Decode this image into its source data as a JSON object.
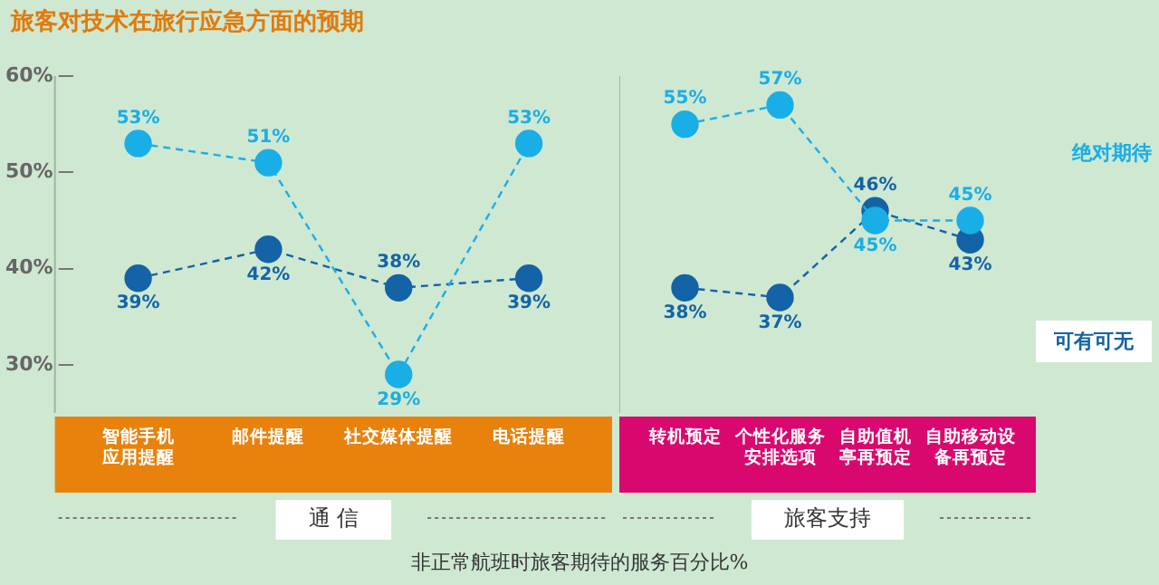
{
  "chart_data": [
    {
      "type": "line",
      "title": "旅客对技术在旅行应急方面的预期",
      "xlabel": "通 信",
      "annotations": [
        "非正常航班时旅客期待的服务百分比%"
      ],
      "categories": [
        "智能手机应用提醒",
        "邮件提醒",
        "社交媒体提醒",
        "电话提醒"
      ],
      "series": [
        {
          "color": "#1aaee6",
          "values": [
            53,
            51,
            29,
            53
          ],
          "value_labels": [
            "53%",
            "51%",
            "29%",
            "53%"
          ]
        },
        {
          "color": "#1463a6",
          "values": [
            39,
            42,
            38,
            39
          ],
          "value_labels": [
            "39%",
            "42%",
            "38%",
            "39%"
          ]
        }
      ],
      "ylim": [
        25,
        60
      ],
      "yticks": [
        {
          "value": 30,
          "label": "30%"
        },
        {
          "value": 40,
          "label": "40%"
        },
        {
          "value": 50,
          "label": "50%"
        },
        {
          "value": 60,
          "label": "60%"
        }
      ],
      "grid": false,
      "marker": "circle",
      "line_style": "dashed"
    },
    {
      "type": "line",
      "xlabel": "旅客支持",
      "categories": [
        "转机预定",
        "个性化服务安排选项",
        "自助值机亭再预定",
        "自助移动设备再预定"
      ],
      "series": [
        {
          "name": "绝对期待",
          "color": "#1aaee6",
          "values": [
            55,
            57,
            45,
            45
          ],
          "value_labels": [
            "55%",
            "57%",
            "45%",
            "45%"
          ]
        },
        {
          "name": "可有可无",
          "color": "#1463a6",
          "values": [
            38,
            37,
            46,
            43
          ],
          "value_labels": [
            "38%",
            "37%",
            "46%",
            "43%"
          ]
        }
      ],
      "ylim": [
        25,
        60
      ],
      "tick_labels": "x",
      "grid": false,
      "legend": "right",
      "marker": "circle",
      "line_style": "dashed"
    }
  ]
}
